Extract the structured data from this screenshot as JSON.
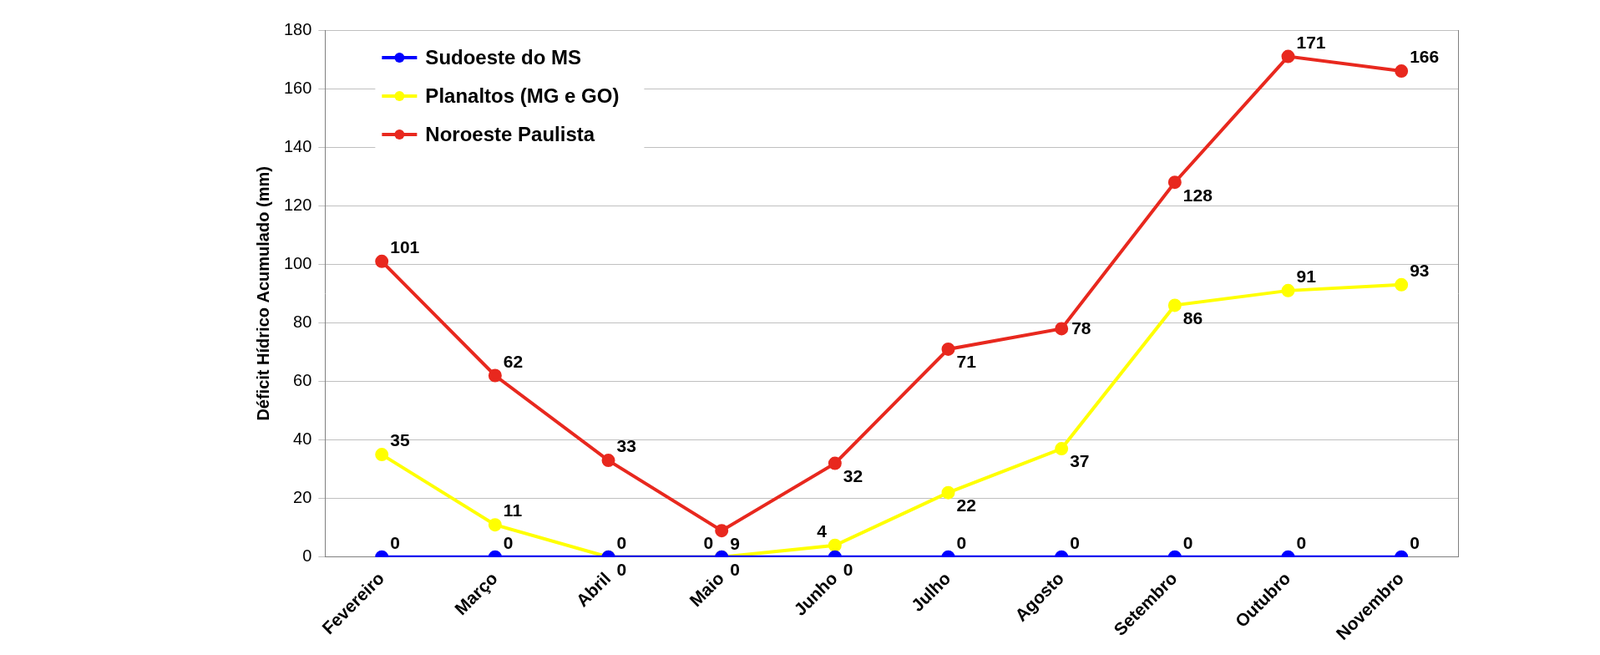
{
  "chart_data": {
    "type": "line",
    "categories": [
      "Fevereiro",
      "Março",
      "Abril",
      "Maio",
      "Junho",
      "Julho",
      "Agosto",
      "Setembro",
      "Outubro",
      "Novembro"
    ],
    "series": [
      {
        "name": "Sudoeste do MS",
        "color": "#0000ff",
        "values": [
          0,
          0,
          0,
          0,
          0,
          0,
          0,
          0,
          0,
          0
        ]
      },
      {
        "name": "Planaltos (MG e GO)",
        "color": "#ffff00",
        "values": [
          35,
          11,
          0,
          0,
          4,
          22,
          37,
          86,
          91,
          93
        ]
      },
      {
        "name": "Noroeste Paulista",
        "color": "#e8281e",
        "values": [
          101,
          62,
          33,
          9,
          32,
          71,
          78,
          128,
          171,
          166
        ]
      }
    ],
    "ylabel": "Déficit Hídrico Acumulado (mm)",
    "ylim": [
      0,
      180
    ],
    "yticks": [
      0,
      20,
      40,
      60,
      80,
      100,
      120,
      140,
      160,
      180
    ],
    "grid": true,
    "legend": "upper left",
    "data_labels": true,
    "marker": "circle",
    "line_style": "solid"
  }
}
